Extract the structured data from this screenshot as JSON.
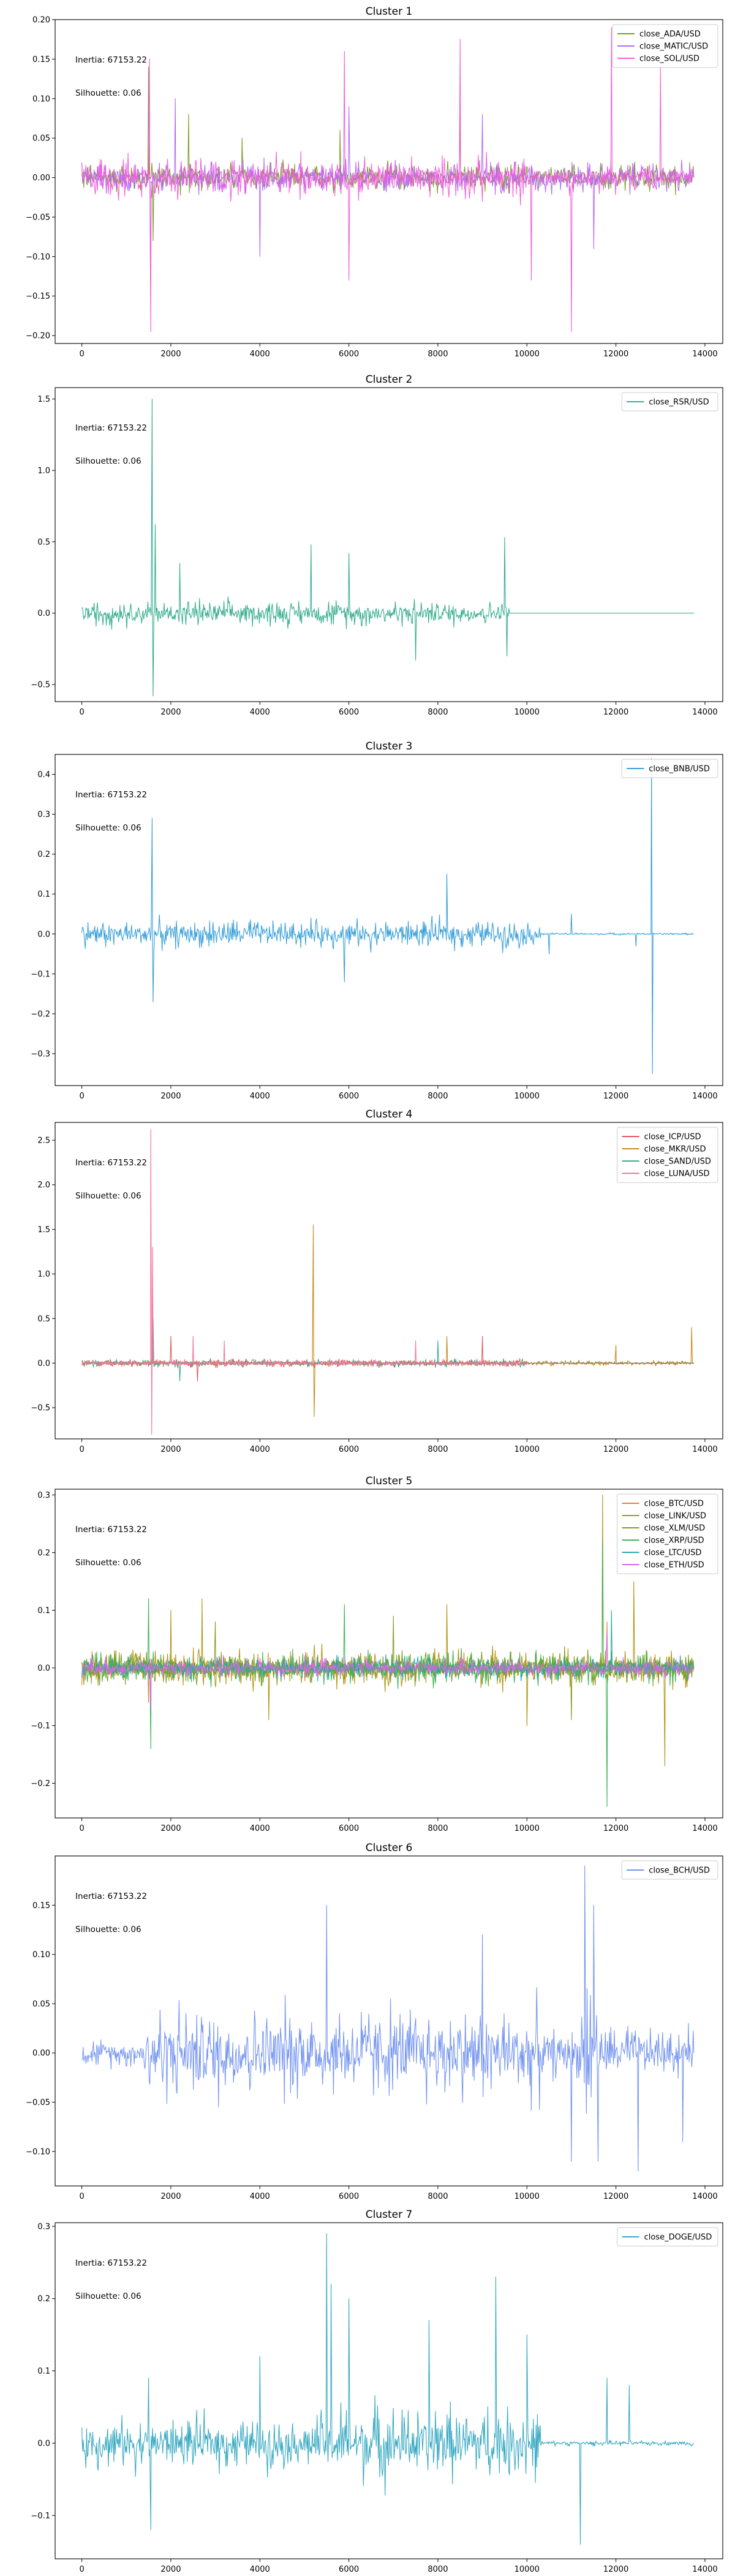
{
  "chart_data": [
    {
      "type": "line",
      "title": "Cluster 1",
      "annotations": [
        "Inertia: 67153.22",
        "Silhouette: 0.06"
      ],
      "legend": "top-right",
      "xlim": [
        -600,
        14400
      ],
      "ylim": [
        -0.21,
        0.2
      ],
      "xticks": [
        0,
        2000,
        4000,
        6000,
        8000,
        10000,
        12000,
        14000
      ],
      "yticks": [
        -0.2,
        -0.15,
        -0.1,
        -0.05,
        0.0,
        0.05,
        0.1,
        0.15,
        0.2
      ],
      "ytick_labels": [
        "−0.20",
        "−0.15",
        "−0.10",
        "−0.05",
        "0.00",
        "0.05",
        "0.10",
        "0.15",
        "0.20"
      ],
      "series": [
        {
          "name": "close_ADA/USD",
          "color": "#7a9e1f",
          "x_end": 13750,
          "segments": [
            {
              "x0": 0,
              "x1": 13750,
              "amp": 0.02
            }
          ],
          "spikes": [
            [
              1500,
              0.14
            ],
            [
              1600,
              -0.08
            ],
            [
              2400,
              0.08
            ],
            [
              3600,
              0.05
            ],
            [
              5800,
              0.06
            ],
            [
              8500,
              0.09
            ]
          ]
        },
        {
          "name": "close_MATIC/USD",
          "color": "#b26cf5",
          "x_end": 13750,
          "segments": [
            {
              "x0": 0,
              "x1": 13750,
              "amp": 0.022
            }
          ],
          "spikes": [
            [
              1550,
              -0.12
            ],
            [
              2100,
              0.1
            ],
            [
              4000,
              -0.1
            ],
            [
              6000,
              0.09
            ],
            [
              9000,
              0.08
            ],
            [
              11500,
              -0.09
            ]
          ]
        },
        {
          "name": "close_SOL/USD",
          "color": "#f05fd8",
          "x_end": 13750,
          "segments": [
            {
              "x0": 0,
              "x1": 10000,
              "amp": 0.03
            },
            {
              "x0": 10000,
              "x1": 13750,
              "amp": 0.02
            }
          ],
          "spikes": [
            [
              1550,
              -0.195
            ],
            [
              1520,
              0.15
            ],
            [
              5900,
              0.16
            ],
            [
              6000,
              -0.13
            ],
            [
              8500,
              0.175
            ],
            [
              11000,
              -0.195
            ],
            [
              11900,
              0.19
            ],
            [
              13000,
              0.14
            ],
            [
              10100,
              -0.13
            ]
          ]
        }
      ]
    },
    {
      "type": "line",
      "title": "Cluster 2",
      "annotations": [
        "Inertia: 67153.22",
        "Silhouette: 0.06"
      ],
      "legend": "top-right",
      "xlim": [
        -600,
        14400
      ],
      "ylim": [
        -0.62,
        1.58
      ],
      "xticks": [
        0,
        2000,
        4000,
        6000,
        8000,
        10000,
        12000,
        14000
      ],
      "yticks": [
        -0.5,
        0.0,
        0.5,
        1.0,
        1.5
      ],
      "ytick_labels": [
        "−0.5",
        "0.0",
        "0.5",
        "1.0",
        "1.5"
      ],
      "series": [
        {
          "name": "close_RSR/USD",
          "color": "#35ad8e",
          "x_end": 13750,
          "segments": [
            {
              "x0": 0,
              "x1": 9600,
              "amp": 0.1
            },
            {
              "x0": 9600,
              "x1": 13750,
              "amp": 0.0
            }
          ],
          "spikes": [
            [
              1580,
              1.5
            ],
            [
              1600,
              -0.58
            ],
            [
              1650,
              0.62
            ],
            [
              2200,
              0.35
            ],
            [
              5150,
              0.48
            ],
            [
              6000,
              0.42
            ],
            [
              7500,
              -0.33
            ],
            [
              9500,
              0.53
            ],
            [
              9550,
              -0.3
            ]
          ]
        }
      ]
    },
    {
      "type": "line",
      "title": "Cluster 3",
      "annotations": [
        "Inertia: 67153.22",
        "Silhouette: 0.06"
      ],
      "legend": "top-right",
      "xlim": [
        -600,
        14400
      ],
      "ylim": [
        -0.38,
        0.45
      ],
      "xticks": [
        0,
        2000,
        4000,
        6000,
        8000,
        10000,
        12000,
        14000
      ],
      "yticks": [
        -0.3,
        -0.2,
        -0.1,
        0.0,
        0.1,
        0.2,
        0.3,
        0.4
      ],
      "ytick_labels": [
        "−0.3",
        "−0.2",
        "−0.1",
        "0.0",
        "0.1",
        "0.2",
        "0.3",
        "0.4"
      ],
      "series": [
        {
          "name": "close_BNB/USD",
          "color": "#379fd9",
          "x_end": 13750,
          "segments": [
            {
              "x0": 0,
              "x1": 10300,
              "amp": 0.04
            },
            {
              "x0": 10300,
              "x1": 13750,
              "amp": 0.003
            }
          ],
          "spikes": [
            [
              1580,
              0.29
            ],
            [
              1600,
              -0.17
            ],
            [
              5900,
              -0.12
            ],
            [
              8200,
              0.15
            ],
            [
              10500,
              -0.05
            ],
            [
              11000,
              0.05
            ],
            [
              12450,
              -0.03
            ],
            [
              12800,
              0.44
            ],
            [
              12820,
              -0.35
            ]
          ]
        }
      ]
    },
    {
      "type": "line",
      "title": "Cluster 4",
      "annotations": [
        "Inertia: 67153.22",
        "Silhouette: 0.06"
      ],
      "legend": "top-right",
      "xlim": [
        -600,
        14400
      ],
      "ylim": [
        -0.85,
        2.7
      ],
      "xticks": [
        0,
        2000,
        4000,
        6000,
        8000,
        10000,
        12000,
        14000
      ],
      "yticks": [
        -0.5,
        0.0,
        0.5,
        1.0,
        1.5,
        2.0,
        2.5
      ],
      "ytick_labels": [
        "−0.5",
        "0.0",
        "0.5",
        "1.0",
        "1.5",
        "2.0",
        "2.5"
      ],
      "series": [
        {
          "name": "close_ICP/USD",
          "color": "#e0595d",
          "x_end": 13750,
          "segments": [
            {
              "x0": 0,
              "x1": 10000,
              "amp": 0.05
            },
            {
              "x0": 10000,
              "x1": 13750,
              "amp": 0.02
            }
          ],
          "spikes": [
            [
              2000,
              0.3
            ],
            [
              2600,
              -0.2
            ],
            [
              9000,
              0.3
            ]
          ]
        },
        {
          "name": "close_MKR/USD",
          "color": "#c78a1a",
          "x_end": 13750,
          "segments": [
            {
              "x0": 0,
              "x1": 13750,
              "amp": 0.03
            }
          ],
          "spikes": [
            [
              5200,
              1.55
            ],
            [
              5220,
              -0.6
            ],
            [
              8200,
              0.3
            ],
            [
              12000,
              0.2
            ],
            [
              13700,
              0.4
            ]
          ]
        },
        {
          "name": "close_SAND/USD",
          "color": "#35ad8e",
          "x_end": 13750,
          "segments": [
            {
              "x0": 0,
              "x1": 10000,
              "amp": 0.045
            },
            {
              "x0": 10000,
              "x1": 13750,
              "amp": 0.0
            }
          ],
          "spikes": [
            [
              1600,
              0.5
            ],
            [
              2200,
              -0.2
            ],
            [
              8000,
              0.25
            ]
          ]
        },
        {
          "name": "close_LUNA/USD",
          "color": "#f7729c",
          "x_end": 10000,
          "segments": [
            {
              "x0": 0,
              "x1": 10000,
              "amp": 0.04
            }
          ],
          "spikes": [
            [
              1550,
              2.62
            ],
            [
              1570,
              -0.8
            ],
            [
              1590,
              1.3
            ],
            [
              2500,
              0.3
            ],
            [
              3200,
              0.25
            ],
            [
              7500,
              0.25
            ]
          ]
        }
      ]
    },
    {
      "type": "line",
      "title": "Cluster 5",
      "annotations": [
        "Inertia: 67153.22",
        "Silhouette: 0.06"
      ],
      "legend": "top-right",
      "xlim": [
        -600,
        14400
      ],
      "ylim": [
        -0.26,
        0.31
      ],
      "xticks": [
        0,
        2000,
        4000,
        6000,
        8000,
        10000,
        12000,
        14000
      ],
      "yticks": [
        -0.2,
        -0.1,
        0.0,
        0.1,
        0.2,
        0.3
      ],
      "ytick_labels": [
        "−0.2",
        "−0.1",
        "0.0",
        "0.1",
        "0.2",
        "0.3"
      ],
      "series": [
        {
          "name": "close_BTC/USD",
          "color": "#e87d45",
          "x_end": 13750,
          "segments": [
            {
              "x0": 0,
              "x1": 13750,
              "amp": 0.015
            }
          ],
          "spikes": [
            [
              1500,
              -0.06
            ],
            [
              11800,
              0.08
            ]
          ]
        },
        {
          "name": "close_LINK/USD",
          "color": "#b39515",
          "x_end": 13750,
          "segments": [
            {
              "x0": 0,
              "x1": 13750,
              "amp": 0.035
            }
          ],
          "spikes": [
            [
              2000,
              0.1
            ],
            [
              2700,
              0.12
            ],
            [
              4200,
              -0.09
            ],
            [
              8200,
              0.11
            ],
            [
              10000,
              -0.1
            ],
            [
              11700,
              0.3
            ],
            [
              12400,
              0.15
            ],
            [
              13100,
              -0.17
            ]
          ]
        },
        {
          "name": "close_XLM/USD",
          "color": "#8a9a1c",
          "x_end": 13750,
          "segments": [
            {
              "x0": 0,
              "x1": 13750,
              "amp": 0.03
            }
          ],
          "spikes": [
            [
              3000,
              0.08
            ],
            [
              7000,
              0.09
            ],
            [
              11000,
              -0.09
            ]
          ]
        },
        {
          "name": "close_XRP/USD",
          "color": "#3db555",
          "x_end": 13750,
          "segments": [
            {
              "x0": 0,
              "x1": 13750,
              "amp": 0.03
            }
          ],
          "spikes": [
            [
              1500,
              0.12
            ],
            [
              1550,
              -0.14
            ],
            [
              5900,
              0.11
            ],
            [
              11800,
              -0.24
            ],
            [
              11700,
              0.22
            ]
          ]
        },
        {
          "name": "close_LTC/USD",
          "color": "#2aa8a8",
          "x_end": 13750,
          "segments": [
            {
              "x0": 0,
              "x1": 13750,
              "amp": 0.02
            }
          ],
          "spikes": [
            [
              11900,
              0.1
            ]
          ]
        },
        {
          "name": "close_ETH/USD",
          "color": "#dc64f0",
          "x_end": 13750,
          "segments": [
            {
              "x0": 0,
              "x1": 13750,
              "amp": 0.018
            }
          ],
          "spikes": [
            [
              1550,
              -0.07
            ],
            [
              11800,
              0.06
            ]
          ]
        }
      ]
    },
    {
      "type": "line",
      "title": "Cluster 6",
      "annotations": [
        "Inertia: 67153.22",
        "Silhouette: 0.06"
      ],
      "legend": "top-right",
      "xlim": [
        -600,
        14400
      ],
      "ylim": [
        -0.135,
        0.2
      ],
      "xticks": [
        0,
        2000,
        4000,
        6000,
        8000,
        10000,
        12000,
        14000
      ],
      "yticks": [
        -0.1,
        -0.05,
        0.0,
        0.05,
        0.1,
        0.15
      ],
      "ytick_labels": [
        "−0.10",
        "−0.05",
        "0.00",
        "0.05",
        "0.10",
        "0.15"
      ],
      "series": [
        {
          "name": "close_BCH/USD",
          "color": "#7595f0",
          "x_end": 13750,
          "segments": [
            {
              "x0": 0,
              "x1": 1400,
              "amp": 0.015
            },
            {
              "x0": 1400,
              "x1": 10300,
              "amp": 0.055
            },
            {
              "x0": 10300,
              "x1": 11200,
              "amp": 0.03
            },
            {
              "x0": 11200,
              "x1": 11600,
              "amp": 0.08
            },
            {
              "x0": 11600,
              "x1": 13750,
              "amp": 0.03
            }
          ],
          "spikes": [
            [
              11300,
              0.19
            ],
            [
              11500,
              0.15
            ],
            [
              11600,
              -0.11
            ],
            [
              11000,
              -0.11
            ],
            [
              12500,
              -0.12
            ],
            [
              13500,
              -0.09
            ],
            [
              5500,
              0.15
            ],
            [
              9000,
              0.12
            ]
          ]
        }
      ]
    },
    {
      "type": "line",
      "title": "Cluster 7",
      "annotations": [
        "Inertia: 67153.22",
        "Silhouette: 0.06"
      ],
      "legend": "top-right",
      "xlim": [
        -600,
        14400
      ],
      "ylim": [
        -0.16,
        0.305
      ],
      "xticks": [
        0,
        2000,
        4000,
        6000,
        8000,
        10000,
        12000,
        14000
      ],
      "yticks": [
        -0.1,
        0.0,
        0.1,
        0.2,
        0.3
      ],
      "ytick_labels": [
        "−0.1",
        "0.0",
        "0.1",
        "0.2",
        "0.3"
      ],
      "series": [
        {
          "name": "close_DOGE/USD",
          "color": "#37a9c2",
          "x_end": 13750,
          "segments": [
            {
              "x0": 0,
              "x1": 5300,
              "amp": 0.04
            },
            {
              "x0": 5300,
              "x1": 10300,
              "amp": 0.06
            },
            {
              "x0": 10300,
              "x1": 13750,
              "amp": 0.004
            }
          ],
          "spikes": [
            [
              1550,
              -0.12
            ],
            [
              1500,
              0.09
            ],
            [
              4000,
              0.12
            ],
            [
              5500,
              0.29
            ],
            [
              5600,
              0.22
            ],
            [
              6000,
              0.2
            ],
            [
              7800,
              0.17
            ],
            [
              9300,
              0.23
            ],
            [
              10000,
              0.15
            ],
            [
              11200,
              -0.14
            ],
            [
              11800,
              0.09
            ],
            [
              12300,
              0.08
            ]
          ]
        }
      ]
    }
  ]
}
